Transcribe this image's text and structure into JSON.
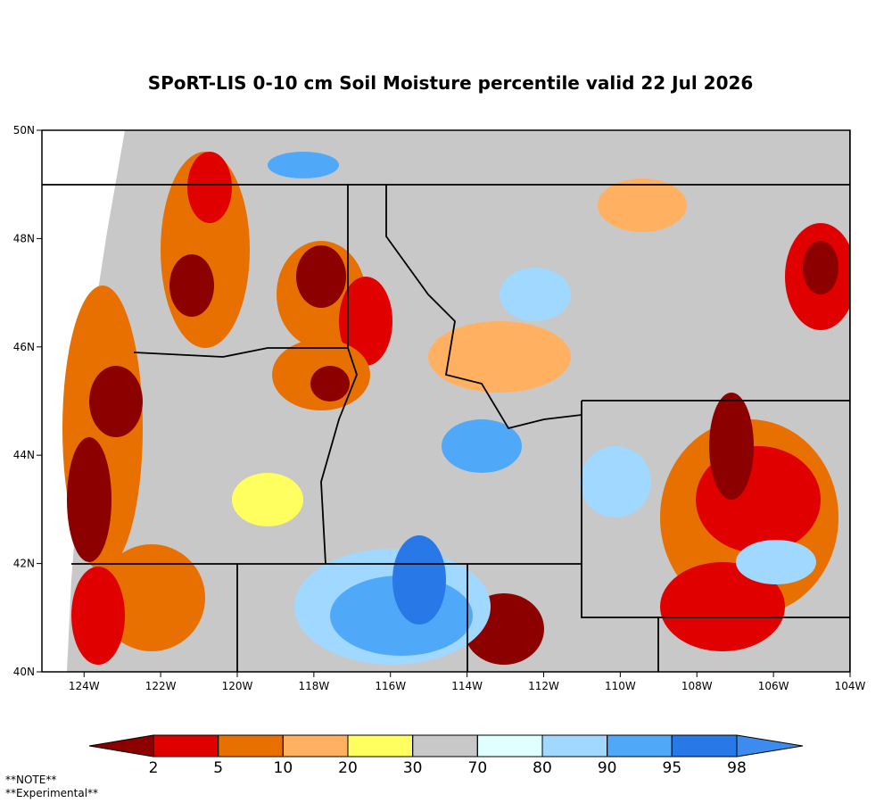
{
  "map": {
    "title": "SPoRT-LIS 0-10 cm Soil Moisture percentile valid 22 Jul 2026",
    "xlim": [
      -125.1,
      -104
    ],
    "ylim": [
      40,
      50
    ],
    "xticks": [
      {
        "value": -124,
        "label": "124W"
      },
      {
        "value": -122,
        "label": "122W"
      },
      {
        "value": -120,
        "label": "120W"
      },
      {
        "value": -118,
        "label": "118W"
      },
      {
        "value": -116,
        "label": "116W"
      },
      {
        "value": -114,
        "label": "114W"
      },
      {
        "value": -112,
        "label": "112W"
      },
      {
        "value": -110,
        "label": "110W"
      },
      {
        "value": -108,
        "label": "108W"
      },
      {
        "value": -106,
        "label": "106W"
      },
      {
        "value": -104,
        "label": "104W"
      }
    ],
    "yticks": [
      {
        "value": 40,
        "label": "40N"
      },
      {
        "value": 42,
        "label": "42N"
      },
      {
        "value": 44,
        "label": "44N"
      },
      {
        "value": 46,
        "label": "46N"
      },
      {
        "value": 48,
        "label": "48N"
      },
      {
        "value": 50,
        "label": "50N"
      }
    ],
    "colorbar": {
      "ticks": [
        2,
        5,
        10,
        20,
        30,
        70,
        80,
        90,
        95,
        98
      ],
      "colors": [
        "#8c0000",
        "#e00000",
        "#e87000",
        "#ffb060",
        "#ffff60",
        "#c8c8c8",
        "#e0ffff",
        "#a0d8ff",
        "#50a8f8",
        "#2878e8",
        "#3c8cf0"
      ]
    },
    "notes": [
      "**NOTE**",
      "**Experimental**"
    ]
  }
}
